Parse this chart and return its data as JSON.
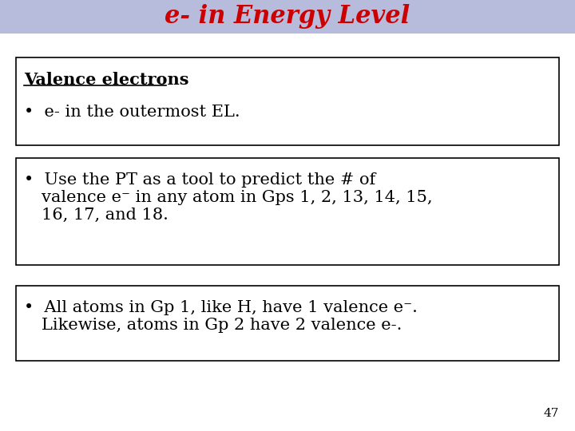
{
  "title": "e- in Energy Level",
  "title_color": "#cc0000",
  "title_bg_color": "#b8bcdc",
  "background_color": "#ffffff",
  "slide_number": "47",
  "box1_heading": "Valence electrons",
  "box1_bullet": "  e- in the outermost EL.",
  "box2_bullet_line1": "Use the PT as a tool to predict the # of",
  "box2_bullet_line2": "valence e⁻ in any atom in Gps 1, 2, 13, 14, 15,",
  "box2_bullet_line3": "16, 17, and 18.",
  "box3_bullet_line1": "All atoms in Gp 1, like H, have 1 valence e⁻.",
  "box3_bullet_line2": "Likewise, atoms in Gp 2 have 2 valence e-.",
  "font_family": "DejaVu Serif",
  "title_fontsize": 22,
  "body_fontsize": 15,
  "heading_fontsize": 15
}
